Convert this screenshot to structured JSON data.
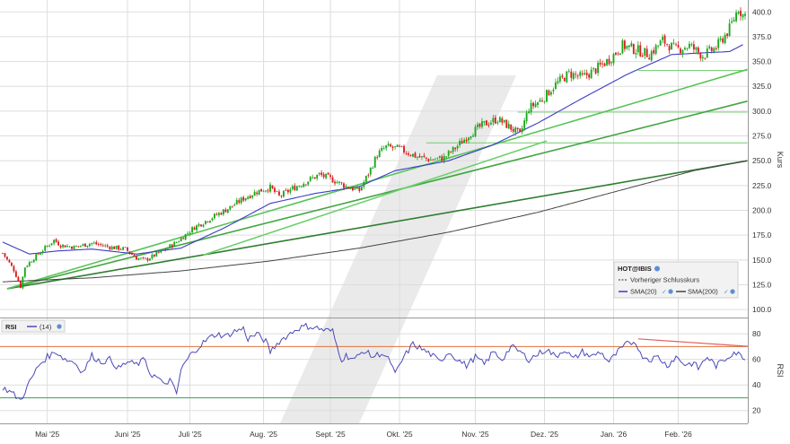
{
  "chart_data": {
    "type": "candlestick",
    "main": {
      "axis_label": "Kurs",
      "ylim": [
        92,
        412
      ],
      "yticks": [
        100,
        125,
        150,
        175,
        200,
        225,
        250,
        275,
        300,
        325,
        350,
        375,
        400
      ],
      "ytick_labels": [
        "100.0",
        "125.0",
        "150.0",
        "175.0",
        "200.0",
        "225.0",
        "250.0",
        "275.0",
        "300.0",
        "325.0",
        "350.0",
        "375.0",
        "400.0"
      ],
      "grid": true,
      "candle_colors": {
        "up": "#1aa71a",
        "down": "#d62020"
      },
      "price_anchors": [
        [
          0,
          157
        ],
        [
          5,
          140
        ],
        [
          8,
          123
        ],
        [
          10,
          143
        ],
        [
          14,
          152
        ],
        [
          18,
          160
        ],
        [
          23,
          170
        ],
        [
          26,
          165
        ],
        [
          32,
          163
        ],
        [
          40,
          167
        ],
        [
          48,
          163
        ],
        [
          55,
          161
        ],
        [
          60,
          152
        ],
        [
          64,
          150
        ],
        [
          70,
          157
        ],
        [
          78,
          168
        ],
        [
          86,
          183
        ],
        [
          94,
          193
        ],
        [
          102,
          203
        ],
        [
          108,
          212
        ],
        [
          114,
          219
        ],
        [
          120,
          223
        ],
        [
          124,
          214
        ],
        [
          130,
          222
        ],
        [
          136,
          229
        ],
        [
          142,
          236
        ],
        [
          148,
          231
        ],
        [
          154,
          224
        ],
        [
          160,
          220
        ],
        [
          164,
          237
        ],
        [
          168,
          256
        ],
        [
          172,
          264
        ],
        [
          178,
          262
        ],
        [
          186,
          254
        ],
        [
          192,
          251
        ],
        [
          198,
          253
        ],
        [
          204,
          265
        ],
        [
          210,
          278
        ],
        [
          216,
          287
        ],
        [
          222,
          292
        ],
        [
          228,
          283
        ],
        [
          232,
          276
        ],
        [
          236,
          303
        ],
        [
          242,
          312
        ],
        [
          248,
          327
        ],
        [
          254,
          338
        ],
        [
          260,
          334
        ],
        [
          266,
          342
        ],
        [
          272,
          352
        ],
        [
          278,
          366
        ],
        [
          284,
          362
        ],
        [
          290,
          357
        ],
        [
          296,
          371
        ],
        [
          302,
          362
        ],
        [
          308,
          366
        ],
        [
          314,
          356
        ],
        [
          320,
          364
        ],
        [
          326,
          383
        ],
        [
          330,
          404
        ],
        [
          332,
          397
        ]
      ],
      "sma20_anchors": [
        [
          0,
          168
        ],
        [
          12,
          156
        ],
        [
          24,
          159
        ],
        [
          40,
          161
        ],
        [
          60,
          156
        ],
        [
          80,
          162
        ],
        [
          100,
          183
        ],
        [
          120,
          207
        ],
        [
          140,
          217
        ],
        [
          160,
          224
        ],
        [
          176,
          240
        ],
        [
          200,
          250
        ],
        [
          220,
          266
        ],
        [
          240,
          288
        ],
        [
          260,
          313
        ],
        [
          280,
          337
        ],
        [
          300,
          357
        ],
        [
          316,
          359
        ],
        [
          326,
          360
        ],
        [
          332,
          367
        ]
      ],
      "sma200_anchors": [
        [
          0,
          128
        ],
        [
          40,
          132
        ],
        [
          80,
          139
        ],
        [
          120,
          149
        ],
        [
          160,
          162
        ],
        [
          200,
          178
        ],
        [
          240,
          198
        ],
        [
          280,
          222
        ],
        [
          310,
          240
        ],
        [
          334,
          250
        ]
      ],
      "horizontal_levels": [
        {
          "from": 190,
          "to": 334,
          "value": 268
        },
        {
          "from": 231,
          "to": 334,
          "value": 299
        },
        {
          "from": 285,
          "to": 334,
          "value": 341
        }
      ],
      "trendlines": [
        {
          "from": [
            2,
            121
          ],
          "to": [
            334,
            250
          ],
          "color": "#2f7d2f"
        },
        {
          "from": [
            2,
            121
          ],
          "to": [
            334,
            310
          ],
          "color": "#41a641"
        },
        {
          "from": [
            2,
            121
          ],
          "to": [
            334,
            342
          ],
          "color": "#58c458"
        },
        {
          "from": [
            90,
            155
          ],
          "to": [
            244,
            270
          ],
          "color": "#6bd06b"
        }
      ],
      "legend": {
        "title": "HOT@IBIS",
        "items": [
          "Vorheriger Schlusskurs",
          "SMA(20)",
          "SMA(200)"
        ]
      }
    },
    "rsi": {
      "title": "RSI",
      "legend_item": "(14)",
      "axis_label": "RSI",
      "ylim": [
        10,
        92
      ],
      "yticks": [
        20,
        40,
        60,
        80
      ],
      "ytick_labels": [
        "20",
        "40",
        "60",
        "80"
      ],
      "overbought": 70,
      "oversold": 30,
      "anchors": [
        [
          0,
          38
        ],
        [
          4,
          34
        ],
        [
          8,
          28
        ],
        [
          12,
          42
        ],
        [
          16,
          55
        ],
        [
          20,
          62
        ],
        [
          24,
          66
        ],
        [
          28,
          60
        ],
        [
          32,
          58
        ],
        [
          36,
          50
        ],
        [
          40,
          63
        ],
        [
          44,
          58
        ],
        [
          48,
          60
        ],
        [
          52,
          53
        ],
        [
          56,
          58
        ],
        [
          60,
          56
        ],
        [
          64,
          60
        ],
        [
          66,
          49
        ],
        [
          70,
          45
        ],
        [
          72,
          40
        ],
        [
          75,
          44
        ],
        [
          78,
          33
        ],
        [
          80,
          52
        ],
        [
          84,
          63
        ],
        [
          88,
          70
        ],
        [
          92,
          76
        ],
        [
          96,
          80
        ],
        [
          100,
          78
        ],
        [
          104,
          82
        ],
        [
          108,
          84
        ],
        [
          110,
          76
        ],
        [
          114,
          80
        ],
        [
          118,
          74
        ],
        [
          120,
          66
        ],
        [
          124,
          74
        ],
        [
          128,
          79
        ],
        [
          132,
          84
        ],
        [
          136,
          86
        ],
        [
          140,
          85
        ],
        [
          144,
          83
        ],
        [
          148,
          82
        ],
        [
          150,
          70
        ],
        [
          152,
          60
        ],
        [
          154,
          63
        ],
        [
          158,
          60
        ],
        [
          162,
          67
        ],
        [
          166,
          62
        ],
        [
          170,
          65
        ],
        [
          174,
          58
        ],
        [
          176,
          48
        ],
        [
          180,
          62
        ],
        [
          184,
          72
        ],
        [
          188,
          68
        ],
        [
          192,
          64
        ],
        [
          196,
          58
        ],
        [
          200,
          66
        ],
        [
          204,
          60
        ],
        [
          208,
          55
        ],
        [
          212,
          62
        ],
        [
          216,
          56
        ],
        [
          220,
          66
        ],
        [
          224,
          60
        ],
        [
          228,
          70
        ],
        [
          232,
          66
        ],
        [
          236,
          60
        ],
        [
          240,
          64
        ],
        [
          244,
          68
        ],
        [
          248,
          62
        ],
        [
          252,
          68
        ],
        [
          256,
          60
        ],
        [
          260,
          66
        ],
        [
          264,
          62
        ],
        [
          268,
          66
        ],
        [
          272,
          58
        ],
        [
          276,
          66
        ],
        [
          280,
          72
        ],
        [
          284,
          74
        ],
        [
          286,
          64
        ],
        [
          290,
          60
        ],
        [
          294,
          62
        ],
        [
          298,
          55
        ],
        [
          302,
          62
        ],
        [
          306,
          56
        ],
        [
          310,
          57
        ],
        [
          312,
          53
        ],
        [
          316,
          62
        ],
        [
          320,
          55
        ],
        [
          324,
          60
        ],
        [
          328,
          66
        ],
        [
          332,
          62
        ]
      ],
      "divergence_line": {
        "from": [
          285,
          76
        ],
        "to": [
          336,
          70
        ],
        "color": "#e06060"
      }
    },
    "x_labels": [
      {
        "index": 20,
        "label": "Mai '25"
      },
      {
        "index": 56,
        "label": "Juni '25"
      },
      {
        "index": 84,
        "label": "Juli '25"
      },
      {
        "index": 117,
        "label": "Aug. '25"
      },
      {
        "index": 147,
        "label": "Sept. '25"
      },
      {
        "index": 178,
        "label": "Okt. '25"
      },
      {
        "index": 212,
        "label": "Nov. '25"
      },
      {
        "index": 243,
        "label": "Dez. '25"
      },
      {
        "index": 274,
        "label": "Jan. '26"
      },
      {
        "index": 303,
        "label": "Feb. '26"
      }
    ],
    "n_bars": 334,
    "colors": {
      "sma20": "#3b3bc8",
      "sma200": "#444444",
      "rsi_line": "#4a4ab8",
      "overbought": "#e0703a",
      "oversold": "#3aa65a",
      "horizontal_levels": "#7fd07f",
      "grid": "#dddddd",
      "axis_text": "#333333"
    }
  }
}
